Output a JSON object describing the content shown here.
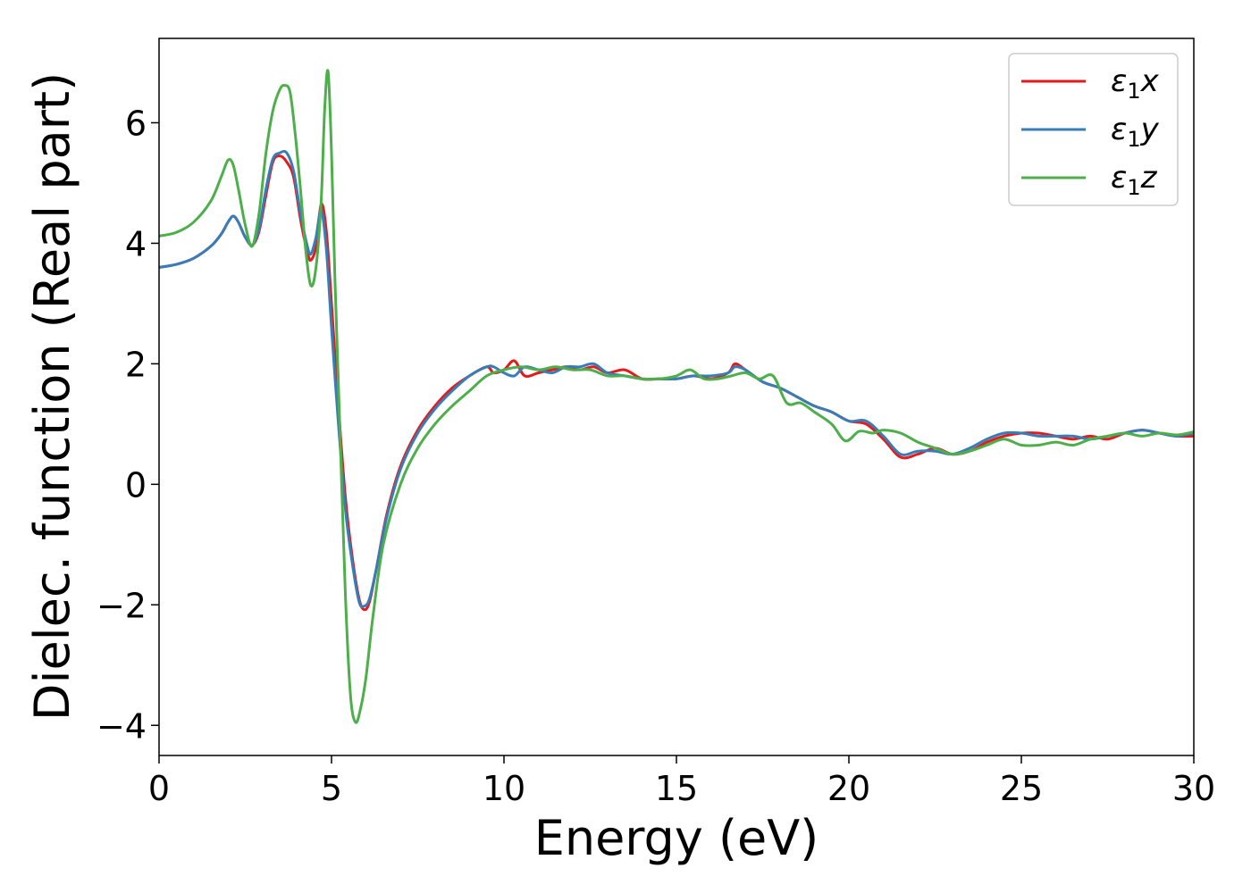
{
  "chart_data": {
    "type": "line",
    "title": "",
    "xlabel": "Energy (eV)",
    "ylabel": "Dielec. function (Real part)",
    "xlim": [
      0,
      30
    ],
    "ylim": [
      -4.5,
      7.4
    ],
    "xticks": [
      0,
      5,
      10,
      15,
      20,
      25,
      30
    ],
    "xtick_labels": [
      "0",
      "5",
      "10",
      "15",
      "20",
      "25",
      "30"
    ],
    "yticks": [
      -4,
      -2,
      0,
      2,
      4,
      6
    ],
    "ytick_labels": [
      "−4",
      "−2",
      "0",
      "2",
      "4",
      "6"
    ],
    "grid": false,
    "legend_position": "top-right",
    "series": [
      {
        "name": "ε1x",
        "legend": {
          "base": "ε",
          "sub": "1",
          "tail": "x"
        },
        "color": "#e41a1c",
        "x": [
          0,
          0.5,
          1.0,
          1.5,
          1.8,
          2.0,
          2.15,
          2.3,
          2.5,
          2.7,
          2.9,
          3.1,
          3.3,
          3.5,
          3.7,
          3.9,
          4.1,
          4.3,
          4.4,
          4.55,
          4.7,
          4.85,
          5.0,
          5.2,
          5.4,
          5.6,
          5.8,
          5.95,
          6.1,
          6.3,
          6.6,
          7.0,
          7.5,
          8.0,
          8.5,
          9.0,
          9.5,
          9.7,
          10.0,
          10.3,
          10.6,
          11.0,
          11.4,
          11.8,
          12.2,
          12.6,
          13.0,
          13.5,
          14.0,
          14.5,
          15.0,
          15.5,
          16.0,
          16.5,
          16.7,
          17.0,
          17.5,
          18.0,
          18.5,
          19.0,
          19.5,
          20.0,
          20.5,
          21.0,
          21.5,
          22.0,
          22.5,
          23.0,
          23.5,
          24.0,
          24.5,
          25.0,
          25.5,
          26.0,
          26.5,
          27.0,
          27.5,
          28.0,
          28.5,
          29.0,
          29.5,
          30.0
        ],
        "y": [
          3.6,
          3.65,
          3.75,
          3.95,
          4.15,
          4.35,
          4.45,
          4.35,
          4.1,
          3.97,
          4.2,
          4.8,
          5.35,
          5.45,
          5.35,
          5.1,
          4.4,
          3.85,
          3.72,
          3.95,
          4.65,
          4.2,
          3.0,
          1.3,
          -0.2,
          -1.2,
          -1.9,
          -2.08,
          -1.95,
          -1.4,
          -0.5,
          0.3,
          0.9,
          1.3,
          1.6,
          1.8,
          1.95,
          1.85,
          1.9,
          2.05,
          1.8,
          1.85,
          1.9,
          1.95,
          1.9,
          1.95,
          1.85,
          1.9,
          1.75,
          1.75,
          1.75,
          1.8,
          1.75,
          1.85,
          2.0,
          1.9,
          1.7,
          1.6,
          1.45,
          1.3,
          1.2,
          1.05,
          1.0,
          0.75,
          0.45,
          0.5,
          0.6,
          0.5,
          0.55,
          0.7,
          0.8,
          0.85,
          0.85,
          0.8,
          0.75,
          0.8,
          0.75,
          0.85,
          0.9,
          0.85,
          0.8,
          0.8
        ]
      },
      {
        "name": "ε1y",
        "legend": {
          "base": "ε",
          "sub": "1",
          "tail": "y"
        },
        "color": "#377eb8",
        "x": [
          0,
          0.5,
          1.0,
          1.5,
          1.8,
          2.0,
          2.15,
          2.3,
          2.5,
          2.7,
          2.9,
          3.1,
          3.3,
          3.5,
          3.7,
          3.9,
          4.1,
          4.3,
          4.4,
          4.55,
          4.7,
          4.85,
          5.0,
          5.2,
          5.4,
          5.6,
          5.8,
          5.95,
          6.1,
          6.3,
          6.6,
          7.0,
          7.5,
          8.0,
          8.5,
          9.0,
          9.5,
          9.7,
          10.0,
          10.3,
          10.6,
          11.0,
          11.4,
          11.8,
          12.2,
          12.6,
          13.0,
          13.5,
          14.0,
          14.5,
          15.0,
          15.5,
          16.0,
          16.5,
          16.7,
          17.0,
          17.5,
          18.0,
          18.5,
          19.0,
          19.5,
          20.0,
          20.5,
          21.0,
          21.5,
          22.0,
          22.5,
          23.0,
          23.5,
          24.0,
          24.5,
          25.0,
          25.5,
          26.0,
          26.5,
          27.0,
          27.5,
          28.0,
          28.5,
          29.0,
          29.5,
          30.0
        ],
        "y": [
          3.6,
          3.65,
          3.75,
          3.95,
          4.15,
          4.35,
          4.45,
          4.35,
          4.1,
          3.97,
          4.25,
          4.9,
          5.4,
          5.5,
          5.5,
          5.2,
          4.5,
          3.95,
          3.82,
          4.1,
          4.55,
          3.9,
          2.6,
          1.0,
          -0.4,
          -1.3,
          -1.95,
          -2.02,
          -1.9,
          -1.4,
          -0.55,
          0.25,
          0.85,
          1.25,
          1.55,
          1.8,
          1.95,
          1.95,
          1.85,
          1.8,
          1.95,
          1.9,
          1.85,
          1.95,
          1.95,
          2.0,
          1.85,
          1.8,
          1.75,
          1.75,
          1.75,
          1.8,
          1.8,
          1.85,
          1.95,
          1.9,
          1.7,
          1.6,
          1.45,
          1.3,
          1.2,
          1.05,
          1.05,
          0.8,
          0.5,
          0.55,
          0.55,
          0.5,
          0.6,
          0.75,
          0.85,
          0.85,
          0.8,
          0.8,
          0.8,
          0.75,
          0.8,
          0.85,
          0.9,
          0.85,
          0.8,
          0.85
        ]
      },
      {
        "name": "ε1z",
        "legend": {
          "base": "ε",
          "sub": "1",
          "tail": "z"
        },
        "color": "#4daf4a",
        "x": [
          0,
          0.5,
          1.0,
          1.5,
          1.8,
          2.0,
          2.15,
          2.3,
          2.5,
          2.7,
          2.9,
          3.1,
          3.3,
          3.5,
          3.65,
          3.8,
          3.95,
          4.1,
          4.25,
          4.4,
          4.55,
          4.7,
          4.8,
          4.9,
          5.0,
          5.1,
          5.25,
          5.4,
          5.55,
          5.7,
          5.85,
          6.0,
          6.2,
          6.5,
          7.0,
          7.5,
          8.0,
          8.5,
          9.0,
          9.5,
          10.0,
          10.5,
          11.0,
          11.5,
          12.0,
          12.5,
          13.0,
          13.5,
          14.0,
          14.5,
          15.0,
          15.4,
          15.8,
          16.2,
          16.6,
          17.0,
          17.4,
          17.8,
          18.2,
          18.6,
          19.0,
          19.5,
          19.9,
          20.3,
          20.7,
          21.0,
          21.5,
          22.0,
          22.5,
          23.0,
          23.5,
          24.0,
          24.5,
          25.0,
          25.5,
          26.0,
          26.5,
          27.0,
          27.5,
          28.0,
          28.5,
          29.0,
          29.5,
          30.0
        ],
        "y": [
          4.12,
          4.18,
          4.35,
          4.7,
          5.1,
          5.38,
          5.3,
          4.9,
          4.3,
          3.95,
          4.5,
          5.5,
          6.2,
          6.55,
          6.62,
          6.5,
          5.8,
          4.9,
          3.9,
          3.3,
          3.6,
          4.7,
          6.2,
          6.85,
          5.5,
          3.4,
          0.8,
          -1.8,
          -3.5,
          -3.95,
          -3.7,
          -3.2,
          -2.2,
          -1.0,
          0.0,
          0.6,
          1.0,
          1.3,
          1.55,
          1.8,
          1.9,
          1.95,
          1.9,
          1.95,
          1.9,
          1.9,
          1.8,
          1.8,
          1.75,
          1.75,
          1.8,
          1.9,
          1.75,
          1.75,
          1.8,
          1.85,
          1.75,
          1.8,
          1.35,
          1.35,
          1.2,
          1.0,
          0.72,
          0.88,
          0.85,
          0.9,
          0.85,
          0.7,
          0.6,
          0.5,
          0.55,
          0.65,
          0.75,
          0.65,
          0.65,
          0.7,
          0.65,
          0.75,
          0.8,
          0.85,
          0.8,
          0.85,
          0.82,
          0.87
        ]
      }
    ]
  }
}
